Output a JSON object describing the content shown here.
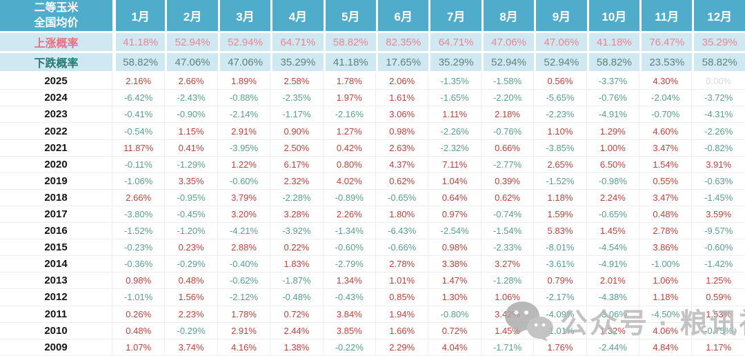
{
  "table": {
    "title_line1": "二等玉米",
    "title_line2": "全国均价",
    "rise_label": "上涨概率",
    "fall_label": "下跌概率"
  },
  "colors": {
    "header_bg": "#4fadcb",
    "prob_row_bg": "#cfe8f2",
    "rise_label": "#ec6d81",
    "rise_value": "#ef8291",
    "fall_label": "#1f7c6f",
    "fall_value": "#5d8478",
    "positive_value": "#c2403a",
    "negative_value": "#56a08c",
    "zero_value": "#d9d9d9"
  },
  "watermark": {
    "icon": "wechat-icon",
    "text": "公众号 · 粮讯社"
  },
  "chart_data": {
    "type": "table",
    "title": "二等玉米全国均价",
    "columns": [
      "1月",
      "2月",
      "3月",
      "4月",
      "5月",
      "6月",
      "7月",
      "8月",
      "9月",
      "10月",
      "11月",
      "12月"
    ],
    "rise_probability_pct": [
      41.18,
      52.94,
      52.94,
      64.71,
      58.82,
      82.35,
      64.71,
      47.06,
      47.06,
      41.18,
      76.47,
      35.29
    ],
    "fall_probability_pct": [
      58.82,
      47.06,
      47.06,
      35.29,
      41.18,
      17.65,
      35.29,
      52.94,
      52.94,
      58.82,
      23.53,
      58.82
    ],
    "rows": [
      {
        "year": "2025",
        "monthly_change_pct": [
          2.16,
          2.66,
          1.89,
          2.58,
          1.78,
          2.06,
          -1.35,
          -1.58,
          0.56,
          -3.37,
          4.3,
          0.0
        ]
      },
      {
        "year": "2024",
        "monthly_change_pct": [
          -6.42,
          -2.43,
          -0.88,
          -2.35,
          1.97,
          1.61,
          -1.65,
          -2.2,
          -5.65,
          -0.76,
          -2.04,
          -3.72
        ]
      },
      {
        "year": "2023",
        "monthly_change_pct": [
          -0.41,
          -0.9,
          -2.14,
          -1.17,
          -2.16,
          3.06,
          1.11,
          2.18,
          -2.23,
          -4.91,
          -0.7,
          -4.31
        ]
      },
      {
        "year": "2022",
        "monthly_change_pct": [
          -0.54,
          1.15,
          2.91,
          0.9,
          1.27,
          0.98,
          -2.26,
          -0.76,
          1.1,
          1.29,
          4.6,
          -2.26
        ]
      },
      {
        "year": "2021",
        "monthly_change_pct": [
          11.87,
          0.41,
          -3.95,
          2.5,
          0.42,
          2.63,
          -2.32,
          0.66,
          -3.85,
          1.0,
          3.47,
          -0.82
        ]
      },
      {
        "year": "2020",
        "monthly_change_pct": [
          -0.11,
          -1.29,
          1.22,
          6.17,
          0.8,
          4.37,
          7.11,
          -2.77,
          2.65,
          6.5,
          1.54,
          3.91
        ]
      },
      {
        "year": "2019",
        "monthly_change_pct": [
          -1.06,
          3.35,
          -0.6,
          2.32,
          4.02,
          0.62,
          1.04,
          0.39,
          -1.52,
          -0.98,
          0.55,
          -0.63
        ]
      },
      {
        "year": "2018",
        "monthly_change_pct": [
          2.66,
          -0.95,
          3.79,
          -2.28,
          -0.89,
          -0.65,
          0.64,
          0.62,
          1.18,
          2.24,
          3.47,
          -1.45
        ]
      },
      {
        "year": "2017",
        "monthly_change_pct": [
          -3.8,
          -0.45,
          3.2,
          3.28,
          2.26,
          1.8,
          0.97,
          -0.74,
          1.59,
          -0.65,
          0.48,
          3.59
        ]
      },
      {
        "year": "2016",
        "monthly_change_pct": [
          -1.52,
          -1.2,
          -4.21,
          -3.92,
          -1.34,
          -6.43,
          -2.54,
          -1.54,
          5.83,
          1.45,
          2.78,
          -9.57
        ]
      },
      {
        "year": "2015",
        "monthly_change_pct": [
          -0.23,
          0.23,
          2.88,
          0.22,
          -0.6,
          -0.66,
          0.98,
          -2.33,
          -8.01,
          -4.54,
          3.86,
          -0.6
        ]
      },
      {
        "year": "2014",
        "monthly_change_pct": [
          -0.36,
          -0.29,
          -0.4,
          1.83,
          -2.79,
          2.78,
          3.38,
          3.27,
          -3.61,
          -4.91,
          -1.0,
          -1.42
        ]
      },
      {
        "year": "2013",
        "monthly_change_pct": [
          0.98,
          0.48,
          -0.62,
          -1.87,
          1.34,
          1.01,
          1.47,
          -1.28,
          0.79,
          2.01,
          1.06,
          1.25
        ]
      },
      {
        "year": "2012",
        "monthly_change_pct": [
          -1.01,
          1.56,
          -2.12,
          -0.48,
          -0.43,
          0.85,
          1.3,
          1.06,
          -2.17,
          -4.38,
          1.18,
          0.59
        ]
      },
      {
        "year": "2011",
        "monthly_change_pct": [
          0.26,
          2.23,
          1.78,
          0.72,
          3.84,
          1.94,
          -0.8,
          3.42,
          -4.09,
          -3.06,
          -4.5,
          1.53
        ]
      },
      {
        "year": "2010",
        "monthly_change_pct": [
          0.48,
          -0.29,
          2.91,
          2.44,
          3.85,
          1.66,
          0.72,
          1.45,
          -1.01,
          1.32,
          4.06,
          -0.75
        ]
      },
      {
        "year": "2009",
        "monthly_change_pct": [
          1.07,
          3.74,
          4.16,
          1.38,
          -0.22,
          2.29,
          4.04,
          -1.71,
          1.76,
          -2.44,
          4.84,
          1.17
        ]
      }
    ]
  }
}
